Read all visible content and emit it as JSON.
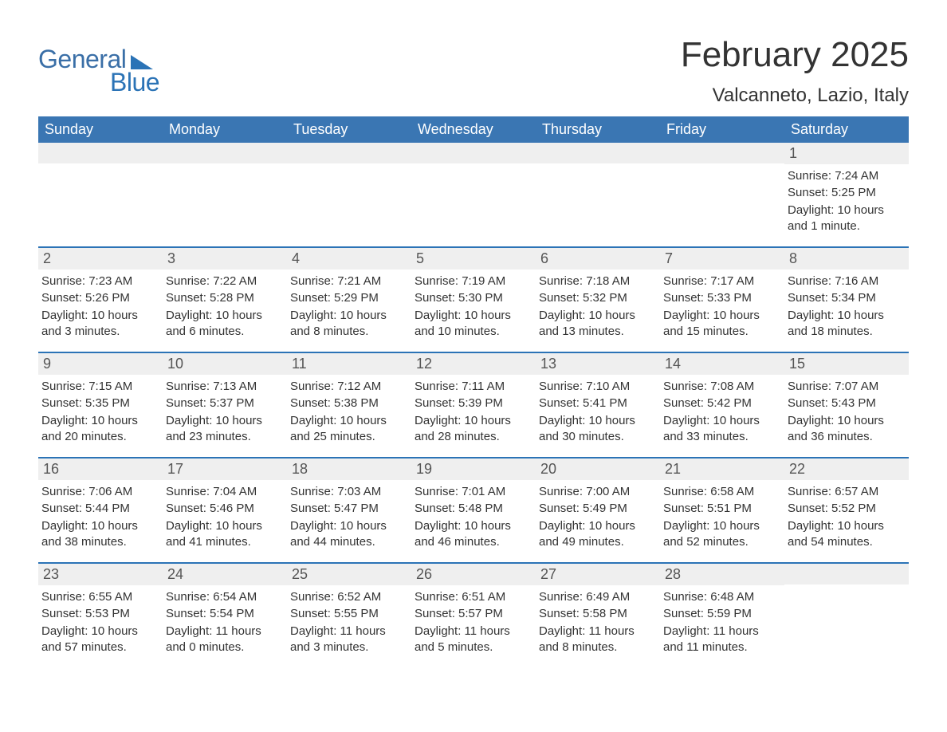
{
  "logo": {
    "line1": "General",
    "line2": "Blue"
  },
  "title": "February 2025",
  "subtitle": "Valcanneto, Lazio, Italy",
  "colors": {
    "header_bg": "#3a76b3",
    "accent": "#2b73b6",
    "daynum_bg": "#efefef",
    "text": "#333333",
    "logo_text": "#3a6fa7"
  },
  "weekdays": [
    "Sunday",
    "Monday",
    "Tuesday",
    "Wednesday",
    "Thursday",
    "Friday",
    "Saturday"
  ],
  "weeks": [
    [
      {
        "n": "",
        "sr": "",
        "ss": "",
        "dl": ""
      },
      {
        "n": "",
        "sr": "",
        "ss": "",
        "dl": ""
      },
      {
        "n": "",
        "sr": "",
        "ss": "",
        "dl": ""
      },
      {
        "n": "",
        "sr": "",
        "ss": "",
        "dl": ""
      },
      {
        "n": "",
        "sr": "",
        "ss": "",
        "dl": ""
      },
      {
        "n": "",
        "sr": "",
        "ss": "",
        "dl": ""
      },
      {
        "n": "1",
        "sr": "Sunrise: 7:24 AM",
        "ss": "Sunset: 5:25 PM",
        "dl": "Daylight: 10 hours and 1 minute."
      }
    ],
    [
      {
        "n": "2",
        "sr": "Sunrise: 7:23 AM",
        "ss": "Sunset: 5:26 PM",
        "dl": "Daylight: 10 hours and 3 minutes."
      },
      {
        "n": "3",
        "sr": "Sunrise: 7:22 AM",
        "ss": "Sunset: 5:28 PM",
        "dl": "Daylight: 10 hours and 6 minutes."
      },
      {
        "n": "4",
        "sr": "Sunrise: 7:21 AM",
        "ss": "Sunset: 5:29 PM",
        "dl": "Daylight: 10 hours and 8 minutes."
      },
      {
        "n": "5",
        "sr": "Sunrise: 7:19 AM",
        "ss": "Sunset: 5:30 PM",
        "dl": "Daylight: 10 hours and 10 minutes."
      },
      {
        "n": "6",
        "sr": "Sunrise: 7:18 AM",
        "ss": "Sunset: 5:32 PM",
        "dl": "Daylight: 10 hours and 13 minutes."
      },
      {
        "n": "7",
        "sr": "Sunrise: 7:17 AM",
        "ss": "Sunset: 5:33 PM",
        "dl": "Daylight: 10 hours and 15 minutes."
      },
      {
        "n": "8",
        "sr": "Sunrise: 7:16 AM",
        "ss": "Sunset: 5:34 PM",
        "dl": "Daylight: 10 hours and 18 minutes."
      }
    ],
    [
      {
        "n": "9",
        "sr": "Sunrise: 7:15 AM",
        "ss": "Sunset: 5:35 PM",
        "dl": "Daylight: 10 hours and 20 minutes."
      },
      {
        "n": "10",
        "sr": "Sunrise: 7:13 AM",
        "ss": "Sunset: 5:37 PM",
        "dl": "Daylight: 10 hours and 23 minutes."
      },
      {
        "n": "11",
        "sr": "Sunrise: 7:12 AM",
        "ss": "Sunset: 5:38 PM",
        "dl": "Daylight: 10 hours and 25 minutes."
      },
      {
        "n": "12",
        "sr": "Sunrise: 7:11 AM",
        "ss": "Sunset: 5:39 PM",
        "dl": "Daylight: 10 hours and 28 minutes."
      },
      {
        "n": "13",
        "sr": "Sunrise: 7:10 AM",
        "ss": "Sunset: 5:41 PM",
        "dl": "Daylight: 10 hours and 30 minutes."
      },
      {
        "n": "14",
        "sr": "Sunrise: 7:08 AM",
        "ss": "Sunset: 5:42 PM",
        "dl": "Daylight: 10 hours and 33 minutes."
      },
      {
        "n": "15",
        "sr": "Sunrise: 7:07 AM",
        "ss": "Sunset: 5:43 PM",
        "dl": "Daylight: 10 hours and 36 minutes."
      }
    ],
    [
      {
        "n": "16",
        "sr": "Sunrise: 7:06 AM",
        "ss": "Sunset: 5:44 PM",
        "dl": "Daylight: 10 hours and 38 minutes."
      },
      {
        "n": "17",
        "sr": "Sunrise: 7:04 AM",
        "ss": "Sunset: 5:46 PM",
        "dl": "Daylight: 10 hours and 41 minutes."
      },
      {
        "n": "18",
        "sr": "Sunrise: 7:03 AM",
        "ss": "Sunset: 5:47 PM",
        "dl": "Daylight: 10 hours and 44 minutes."
      },
      {
        "n": "19",
        "sr": "Sunrise: 7:01 AM",
        "ss": "Sunset: 5:48 PM",
        "dl": "Daylight: 10 hours and 46 minutes."
      },
      {
        "n": "20",
        "sr": "Sunrise: 7:00 AM",
        "ss": "Sunset: 5:49 PM",
        "dl": "Daylight: 10 hours and 49 minutes."
      },
      {
        "n": "21",
        "sr": "Sunrise: 6:58 AM",
        "ss": "Sunset: 5:51 PM",
        "dl": "Daylight: 10 hours and 52 minutes."
      },
      {
        "n": "22",
        "sr": "Sunrise: 6:57 AM",
        "ss": "Sunset: 5:52 PM",
        "dl": "Daylight: 10 hours and 54 minutes."
      }
    ],
    [
      {
        "n": "23",
        "sr": "Sunrise: 6:55 AM",
        "ss": "Sunset: 5:53 PM",
        "dl": "Daylight: 10 hours and 57 minutes."
      },
      {
        "n": "24",
        "sr": "Sunrise: 6:54 AM",
        "ss": "Sunset: 5:54 PM",
        "dl": "Daylight: 11 hours and 0 minutes."
      },
      {
        "n": "25",
        "sr": "Sunrise: 6:52 AM",
        "ss": "Sunset: 5:55 PM",
        "dl": "Daylight: 11 hours and 3 minutes."
      },
      {
        "n": "26",
        "sr": "Sunrise: 6:51 AM",
        "ss": "Sunset: 5:57 PM",
        "dl": "Daylight: 11 hours and 5 minutes."
      },
      {
        "n": "27",
        "sr": "Sunrise: 6:49 AM",
        "ss": "Sunset: 5:58 PM",
        "dl": "Daylight: 11 hours and 8 minutes."
      },
      {
        "n": "28",
        "sr": "Sunrise: 6:48 AM",
        "ss": "Sunset: 5:59 PM",
        "dl": "Daylight: 11 hours and 11 minutes."
      },
      {
        "n": "",
        "sr": "",
        "ss": "",
        "dl": ""
      }
    ]
  ]
}
